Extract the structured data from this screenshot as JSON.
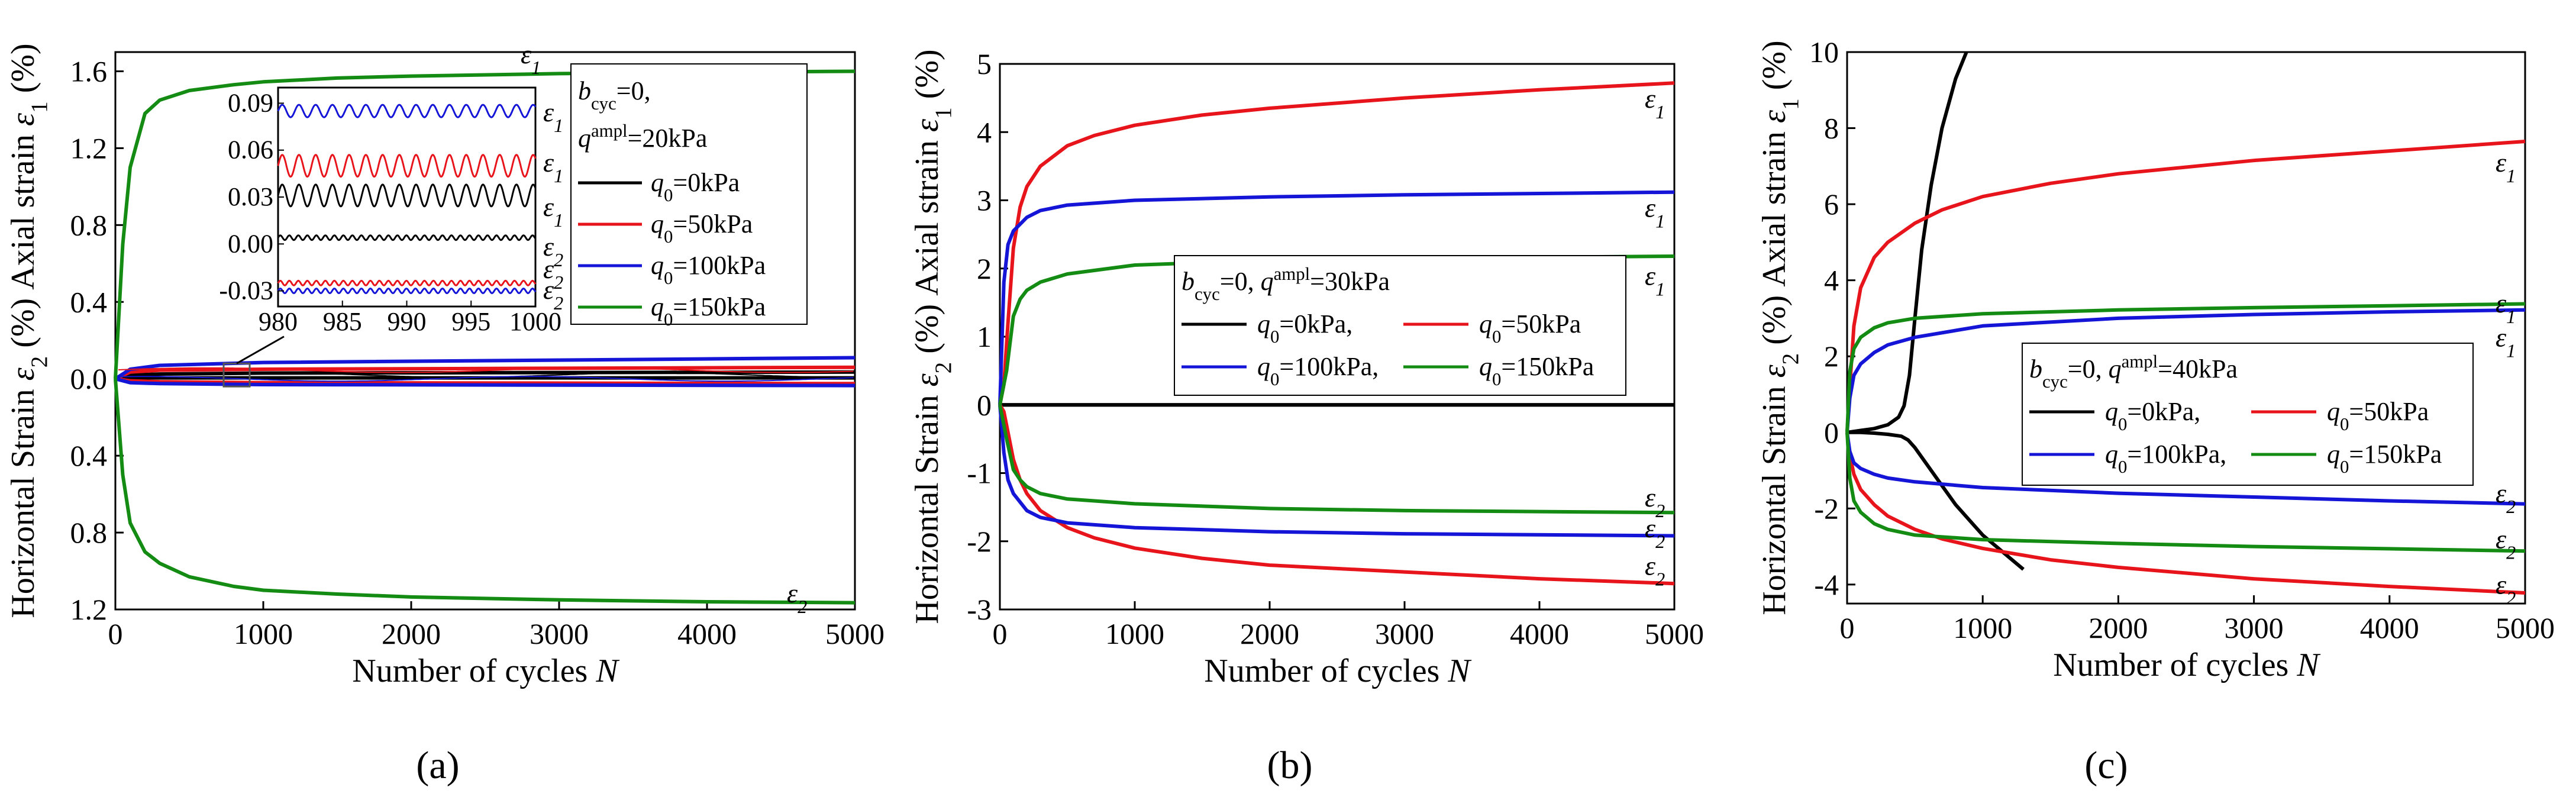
{
  "figure": {
    "panel_labels": [
      "(a)",
      "(b)",
      "(c)"
    ],
    "legend_items": [
      "q0=0kPa",
      "q0=50kPa",
      "q0=100kPa",
      "q0=150kPa"
    ]
  },
  "chart_data": [
    {
      "type": "line",
      "panel": "(a)",
      "xlabel": "Number of cycles N",
      "ylabel": "Horizontal Strain ε2 (%)   Axial strain ε1 (%)",
      "xlim": [
        0,
        5000
      ],
      "ylim": [
        -1.2,
        1.7
      ],
      "xticks": [
        0,
        1000,
        2000,
        3000,
        4000,
        5000
      ],
      "yticks": [
        -1.2,
        -0.8,
        -0.4,
        0.0,
        0.4,
        0.8,
        1.2,
        1.6
      ],
      "ytick_labels": [
        "1.2",
        "0.8",
        "0.4",
        "0.0",
        "0.4",
        "0.8",
        "1.2",
        "1.6"
      ],
      "legend_title": "bcyc=0, qampl=20kPa",
      "series": [
        {
          "name": "q0=0kPa",
          "color": "#000000",
          "x": [
            0,
            100,
            300,
            1000,
            5000
          ],
          "y_eps1": [
            0,
            0.02,
            0.025,
            0.03,
            0.035
          ],
          "y_eps2": [
            0,
            0.005,
            0.005,
            0.005,
            0.005
          ]
        },
        {
          "name": "q0=50kPa",
          "color": "#e8141b",
          "x": [
            0,
            100,
            300,
            1000,
            5000
          ],
          "y_eps1": [
            0,
            0.035,
            0.045,
            0.05,
            0.06
          ],
          "y_eps2": [
            0,
            -0.01,
            -0.015,
            -0.02,
            -0.025
          ]
        },
        {
          "name": "q0=100kPa",
          "color": "#1515d8",
          "x": [
            0,
            100,
            300,
            1000,
            5000
          ],
          "y_eps1": [
            0,
            0.05,
            0.07,
            0.085,
            0.11
          ],
          "y_eps2": [
            0,
            -0.02,
            -0.025,
            -0.03,
            -0.035
          ]
        },
        {
          "name": "q0=150kPa",
          "color": "#148c14",
          "x": [
            0,
            50,
            100,
            200,
            300,
            500,
            800,
            1000,
            1500,
            2000,
            3000,
            4000,
            5000
          ],
          "y_eps1": [
            0,
            0.7,
            1.1,
            1.38,
            1.45,
            1.5,
            1.53,
            1.545,
            1.565,
            1.575,
            1.588,
            1.595,
            1.6
          ],
          "y_eps2": [
            0,
            -0.5,
            -0.75,
            -0.9,
            -0.96,
            -1.03,
            -1.08,
            -1.1,
            -1.12,
            -1.135,
            -1.15,
            -1.16,
            -1.165
          ]
        }
      ],
      "inset": {
        "xlim": [
          980,
          1000
        ],
        "ylim": [
          -0.04,
          0.1
        ],
        "xticks": [
          980,
          985,
          990,
          995,
          1000
        ],
        "yticks": [
          -0.03,
          0.0,
          0.03,
          0.06,
          0.09
        ],
        "ytick_labels": [
          "-0.03",
          "0.00",
          "0.03",
          "0.06",
          "0.09"
        ],
        "series": [
          {
            "name": "q0=100kPa eps1",
            "color": "#1515d8",
            "mean": 0.085,
            "amp": 0.004,
            "period": 1.3
          },
          {
            "name": "q0=50kPa eps1",
            "color": "#e8141b",
            "mean": 0.05,
            "amp": 0.007,
            "period": 1.3
          },
          {
            "name": "q0=0kPa eps1",
            "color": "#000000",
            "mean": 0.031,
            "amp": 0.007,
            "period": 1.3
          },
          {
            "name": "q0=0kPa eps2",
            "color": "#000000",
            "mean": 0.004,
            "amp": 0.0015,
            "period": 0.7
          },
          {
            "name": "q0=50kPa eps2",
            "color": "#e8141b",
            "mean": -0.025,
            "amp": 0.0015,
            "period": 0.7
          },
          {
            "name": "q0=100kPa eps2",
            "color": "#1515d8",
            "mean": -0.03,
            "amp": 0.0015,
            "period": 0.7
          }
        ]
      }
    },
    {
      "type": "line",
      "panel": "(b)",
      "xlabel": "Number of cycles N",
      "ylabel": "Horizontal Strain ε2 (%)   Axial strain ε1 (%)",
      "xlim": [
        0,
        5000
      ],
      "ylim": [
        -3,
        5
      ],
      "xticks": [
        0,
        1000,
        2000,
        3000,
        4000,
        5000
      ],
      "yticks": [
        -3,
        -2,
        -1,
        0,
        1,
        2,
        3,
        4,
        5
      ],
      "ytick_labels": [
        "-3",
        "-2",
        "-1",
        "0",
        "1",
        "2",
        "3",
        "4",
        "5"
      ],
      "legend_title": "bcyc=0, qampl=30kPa",
      "series": [
        {
          "name": "q0=0kPa",
          "color": "#000000",
          "x": [
            0,
            5000
          ],
          "y_eps1": [
            0,
            0
          ],
          "y_eps2": [
            0,
            0
          ]
        },
        {
          "name": "q0=50kPa",
          "color": "#e8141b",
          "x": [
            0,
            30,
            60,
            100,
            150,
            200,
            300,
            500,
            700,
            1000,
            1500,
            2000,
            3000,
            4000,
            5000
          ],
          "y_eps1": [
            0,
            0.3,
            1.2,
            2.3,
            2.9,
            3.2,
            3.5,
            3.8,
            3.95,
            4.1,
            4.25,
            4.35,
            4.5,
            4.62,
            4.72
          ],
          "y_eps2": [
            0,
            -0.1,
            -0.4,
            -0.8,
            -1.1,
            -1.3,
            -1.55,
            -1.8,
            -1.95,
            -2.1,
            -2.25,
            -2.35,
            -2.45,
            -2.55,
            -2.62
          ]
        },
        {
          "name": "q0=100kPa",
          "color": "#1515d8",
          "x": [
            0,
            30,
            60,
            100,
            200,
            300,
            500,
            1000,
            2000,
            3000,
            5000
          ],
          "y_eps1": [
            0,
            1.8,
            2.35,
            2.55,
            2.75,
            2.85,
            2.93,
            3.0,
            3.05,
            3.08,
            3.12
          ],
          "y_eps2": [
            0,
            -0.7,
            -1.1,
            -1.3,
            -1.55,
            -1.65,
            -1.73,
            -1.8,
            -1.86,
            -1.89,
            -1.92
          ]
        },
        {
          "name": "q0=150kPa",
          "color": "#148c14",
          "x": [
            0,
            50,
            100,
            150,
            200,
            300,
            500,
            1000,
            2000,
            3000,
            5000
          ],
          "y_eps1": [
            0,
            0.5,
            1.3,
            1.55,
            1.68,
            1.8,
            1.92,
            2.05,
            2.12,
            2.15,
            2.18
          ],
          "y_eps2": [
            0,
            -0.5,
            -0.95,
            -1.1,
            -1.2,
            -1.3,
            -1.38,
            -1.45,
            -1.52,
            -1.55,
            -1.58
          ]
        }
      ]
    },
    {
      "type": "line",
      "panel": "(c)",
      "xlabel": "Number of cycles N",
      "ylabel": "Horizontal Strain ε2 (%)   Axial strain ε1 (%)",
      "xlim": [
        0,
        5000
      ],
      "ylim": [
        -4.5,
        10
      ],
      "xticks": [
        0,
        1000,
        2000,
        3000,
        4000,
        5000
      ],
      "yticks": [
        -4,
        -2,
        0,
        2,
        4,
        6,
        8,
        10
      ],
      "ytick_labels": [
        "-4",
        "-2",
        "0",
        "2",
        "4",
        "6",
        "8",
        "10"
      ],
      "legend_title": "bcyc=0, qampl=40kPa",
      "series": [
        {
          "name": "q0=0kPa",
          "color": "#000000",
          "x_eps1": [
            0,
            100,
            200,
            300,
            380,
            420,
            460,
            500,
            550,
            620,
            700,
            800,
            880
          ],
          "y_eps1": [
            0,
            0.05,
            0.1,
            0.2,
            0.4,
            0.7,
            1.5,
            3.0,
            4.8,
            6.5,
            8.0,
            9.3,
            10.0
          ],
          "x_eps2": [
            0,
            100,
            200,
            300,
            400,
            450,
            500,
            600,
            700,
            800,
            900,
            1000,
            1100,
            1200,
            1300
          ],
          "y_eps2": [
            0,
            0,
            -0.02,
            -0.05,
            -0.1,
            -0.2,
            -0.4,
            -0.9,
            -1.4,
            -1.9,
            -2.3,
            -2.7,
            -3.0,
            -3.3,
            -3.6
          ]
        },
        {
          "name": "q0=50kPa",
          "color": "#e8141b",
          "x": [
            0,
            20,
            50,
            100,
            200,
            300,
            500,
            700,
            1000,
            1500,
            2000,
            3000,
            4000,
            5000
          ],
          "y_eps1": [
            0,
            1.2,
            2.8,
            3.8,
            4.6,
            5.0,
            5.5,
            5.85,
            6.2,
            6.55,
            6.8,
            7.15,
            7.4,
            7.65
          ],
          "y_eps2": [
            0,
            -0.6,
            -1.1,
            -1.5,
            -1.9,
            -2.2,
            -2.55,
            -2.8,
            -3.05,
            -3.35,
            -3.55,
            -3.85,
            -4.05,
            -4.22
          ]
        },
        {
          "name": "q0=100kPa",
          "color": "#1515d8",
          "x": [
            0,
            20,
            50,
            100,
            200,
            300,
            500,
            1000,
            2000,
            3000,
            4000,
            5000
          ],
          "y_eps1": [
            0,
            0.9,
            1.5,
            1.8,
            2.1,
            2.3,
            2.5,
            2.8,
            3.0,
            3.1,
            3.17,
            3.22
          ],
          "y_eps2": [
            0,
            -0.5,
            -0.8,
            -0.95,
            -1.1,
            -1.2,
            -1.3,
            -1.45,
            -1.6,
            -1.7,
            -1.8,
            -1.88
          ]
        },
        {
          "name": "q0=150kPa",
          "color": "#148c14",
          "x": [
            0,
            20,
            50,
            100,
            200,
            300,
            500,
            1000,
            2000,
            3000,
            4000,
            5000
          ],
          "y_eps1": [
            0,
            1.6,
            2.2,
            2.5,
            2.75,
            2.88,
            3.0,
            3.12,
            3.22,
            3.28,
            3.33,
            3.38
          ],
          "y_eps2": [
            0,
            -1.2,
            -1.8,
            -2.1,
            -2.4,
            -2.55,
            -2.7,
            -2.82,
            -2.92,
            -3.0,
            -3.06,
            -3.12
          ]
        }
      ]
    }
  ]
}
